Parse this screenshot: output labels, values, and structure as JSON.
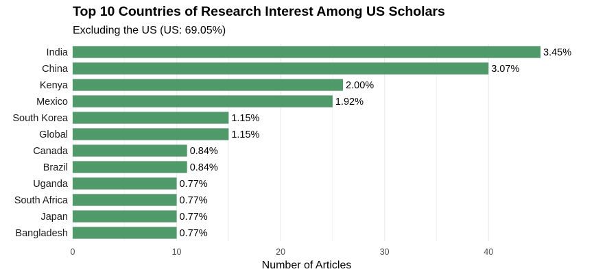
{
  "chart_data": {
    "type": "bar",
    "orientation": "horizontal",
    "title": "Top 10 Countries of Research Interest Among US Scholars",
    "subtitle": "Excluding the US (US: 69.05%)",
    "xlabel": "Number of Articles",
    "ylabel": "",
    "categories": [
      "India",
      "China",
      "Kenya",
      "Mexico",
      "South Korea",
      "Global",
      "Canada",
      "Brazil",
      "Uganda",
      "South Africa",
      "Japan",
      "Bangladesh"
    ],
    "values": [
      45,
      40,
      26,
      25,
      15,
      15,
      11,
      11,
      10,
      10,
      10,
      10
    ],
    "data_labels": [
      "3.45%",
      "3.07%",
      "2.00%",
      "1.92%",
      "1.15%",
      "1.15%",
      "0.84%",
      "0.84%",
      "0.77%",
      "0.77%",
      "0.77%",
      "0.77%"
    ],
    "xlim": [
      0,
      45
    ],
    "xticks": [
      0,
      10,
      20,
      30,
      40
    ],
    "xtick_labels": [
      "0",
      "10",
      "20",
      "30",
      "40"
    ],
    "grid": "vertical",
    "legend": "none",
    "bar_color": "#4f9a69",
    "grid_color": "#ebebeb"
  }
}
